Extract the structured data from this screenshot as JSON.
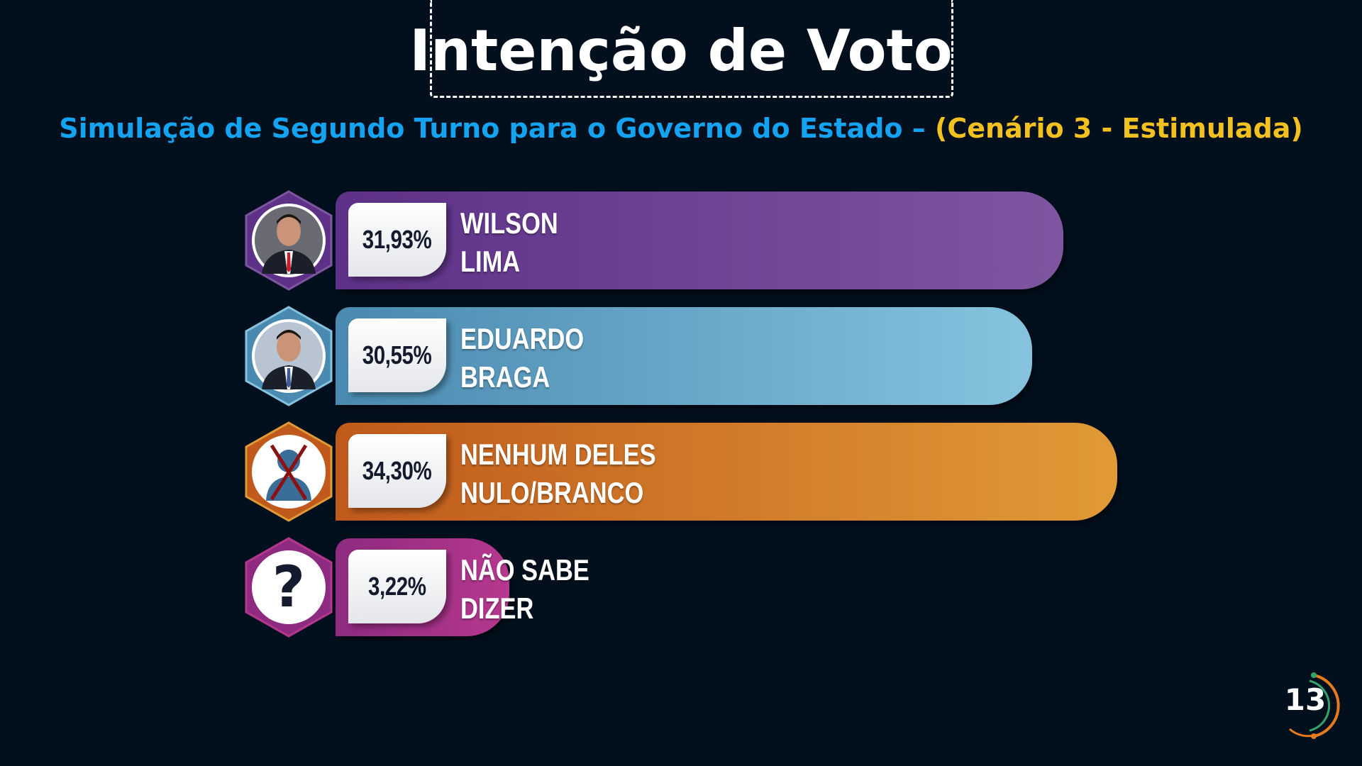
{
  "header": {
    "title": "Intenção de Voto",
    "subtitle_main": "Simulação de Segundo Turno para o Governo do Estado – ",
    "subtitle_scenario": "(Cenário 3 - Estimulada)"
  },
  "colors": {
    "background": "#02101e",
    "subtitle_main": "#14a3f0",
    "subtitle_scenario": "#f3c11f"
  },
  "chart_data": {
    "type": "bar",
    "orientation": "horizontal",
    "title": "Intenção de Voto",
    "subtitle": "Simulação de Segundo Turno para o Governo do Estado – (Cenário 3 - Estimulada)",
    "categories": [
      "WILSON LIMA",
      "EDUARDO BRAGA",
      "NENHUM DELES NULO/BRANCO",
      "NÃO SABE DIZER"
    ],
    "values": [
      31.93,
      30.55,
      34.3,
      3.22
    ],
    "items": [
      {
        "line1": "WILSON",
        "line2": "LIMA",
        "value": 31.93,
        "value_label": "31,93%",
        "icon": "candidate-photo-icon",
        "color_start": "#5e3188",
        "color_end": "#7e56a0"
      },
      {
        "line1": "EDUARDO",
        "line2": "BRAGA",
        "value": 30.55,
        "value_label": "30,55%",
        "icon": "candidate-photo-icon",
        "color_start": "#4a8ab0",
        "color_end": "#86c3de"
      },
      {
        "line1": "NENHUM DELES",
        "line2": "NULO/BRANCO",
        "value": 34.3,
        "value_label": "34,30%",
        "icon": "crossed-person-icon",
        "color_start": "#c05a1c",
        "color_end": "#e09a36"
      },
      {
        "line1": "NÃO SABE",
        "line2": "DIZER",
        "value": 3.22,
        "value_label": "3,22%",
        "icon": "question-mark-icon",
        "color_start": "#8e2b80",
        "color_end": "#b6388e"
      }
    ]
  },
  "badge": {
    "number": "13",
    "icon": "circular-logo-icon"
  }
}
